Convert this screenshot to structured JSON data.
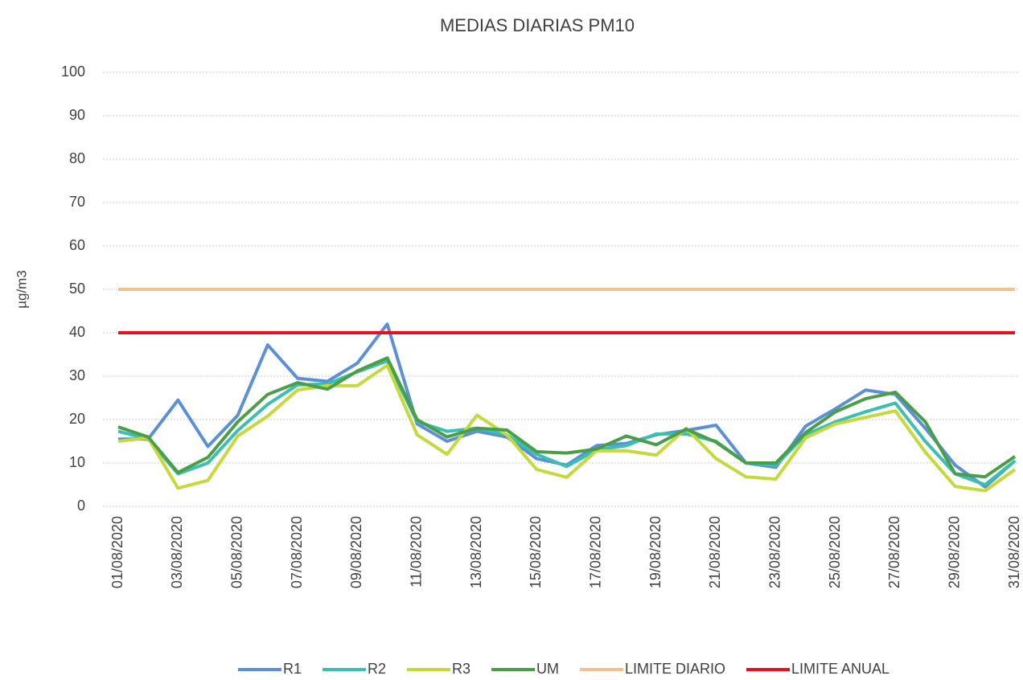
{
  "chart_data": {
    "type": "line",
    "title": "MEDIAS DIARIAS PM10",
    "y_label": "µg/m3",
    "categories": [
      "01/08/2020",
      null,
      "03/08/2020",
      null,
      "05/08/2020",
      null,
      "07/08/2020",
      null,
      "09/08/2020",
      null,
      "11/08/2020",
      null,
      "13/08/2020",
      null,
      "15/08/2020",
      null,
      "17/08/2020",
      null,
      "19/08/2020",
      null,
      "21/08/2020",
      null,
      "23/08/2020",
      null,
      "25/08/2020",
      null,
      "27/08/2020",
      null,
      "29/08/2020",
      null,
      "31/08/2020"
    ],
    "series": [
      {
        "name": "R1",
        "color": "#5b8fd6",
        "values": [
          15.5,
          15.5,
          24.5,
          13.8,
          21,
          37.2,
          29.5,
          28.8,
          33,
          42,
          19,
          15,
          17.3,
          16,
          11,
          9.5,
          14,
          14.5,
          16.5,
          17.5,
          18.7,
          10,
          9,
          18.5,
          22.5,
          26.8,
          25.8,
          18,
          9.5,
          4.5,
          10.5
        ]
      },
      {
        "name": "R2",
        "color": "#3bbfb0",
        "values": [
          17.3,
          15.5,
          7.5,
          10,
          17.5,
          23.5,
          28,
          28.2,
          31,
          33.5,
          19.5,
          17.3,
          18,
          16.5,
          12,
          9.2,
          13,
          14,
          16.7,
          16.7,
          15,
          10,
          9.5,
          16.5,
          19.5,
          21.8,
          23.8,
          15,
          7.5,
          5,
          10.5
        ]
      },
      {
        "name": "R3",
        "color": "#c5d93a",
        "values": [
          15,
          15.8,
          4.2,
          6,
          16.2,
          20.8,
          26.8,
          27.8,
          27.8,
          32.5,
          16.5,
          12,
          21,
          16.5,
          8.5,
          6.7,
          12.8,
          12.8,
          11.8,
          18,
          11,
          6.8,
          6.3,
          15.8,
          19,
          20.5,
          22,
          12.5,
          4.6,
          3.6,
          8.5
        ]
      },
      {
        "name": "UM",
        "color": "#4a9e48",
        "values": [
          18.3,
          16,
          7.8,
          11.3,
          19.5,
          25.8,
          28.5,
          27,
          31.2,
          34.2,
          20,
          16,
          18,
          17.6,
          12.6,
          12.3,
          13.2,
          16.2,
          14.2,
          17.8,
          14.8,
          10,
          10,
          17,
          21.8,
          24.8,
          26.3,
          19.5,
          7.5,
          6.8,
          11.5
        ]
      },
      {
        "name": "LIMITE DIARIO",
        "color": "#f5c090",
        "values": [
          50,
          50,
          50,
          50,
          50,
          50,
          50,
          50,
          50,
          50,
          50,
          50,
          50,
          50,
          50,
          50,
          50,
          50,
          50,
          50,
          50,
          50,
          50,
          50,
          50,
          50,
          50,
          50,
          50,
          50,
          50
        ]
      },
      {
        "name": "LIMITE ANUAL",
        "color": "#e8101a",
        "values": [
          40,
          40,
          40,
          40,
          40,
          40,
          40,
          40,
          40,
          40,
          40,
          40,
          40,
          40,
          40,
          40,
          40,
          40,
          40,
          40,
          40,
          40,
          40,
          40,
          40,
          40,
          40,
          40,
          40,
          40,
          40
        ]
      }
    ],
    "ylim": [
      0,
      100
    ],
    "yticks": [
      0,
      10,
      20,
      30,
      40,
      50,
      60,
      70,
      80,
      90,
      100
    ],
    "grid": true,
    "legend": "bottom"
  }
}
